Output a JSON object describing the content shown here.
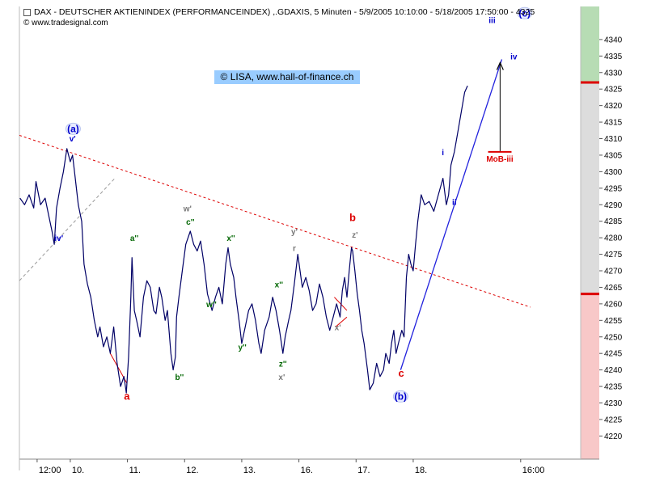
{
  "header": {
    "title": "DAX  - DEUTSCHER AKTIENINDEX (PERFORMANCEINDEX) ,.GDAXIS, 5 Minuten - 5/9/2005 10:10:00 - 5/18/2005 17:50:00 - 4325",
    "source": "© www.tradesignal.com"
  },
  "watermark": "© LISA, www.hall-of-finance.ch",
  "colors": {
    "price": "#000066",
    "trendline": "#dd0000",
    "impulse": "#2222dd",
    "blue_label": "#0000cc",
    "red_label": "#dd0000",
    "green_label": "#006600",
    "gray_label": "#777777",
    "zone_green": "#b7dcb4",
    "zone_gray": "#dcdcdc",
    "zone_red": "#f8c8c8"
  },
  "chart_data": {
    "type": "line",
    "title": "DAX  - DEUTSCHER AKTIENINDEX (PERFORMANCEINDEX) ,.GDAXIS, 5 Minuten",
    "ylim": [
      4213,
      4350
    ],
    "y_ticks": [
      4220,
      4225,
      4230,
      4235,
      4240,
      4245,
      4250,
      4255,
      4260,
      4265,
      4270,
      4275,
      4280,
      4285,
      4290,
      4295,
      4300,
      4305,
      4310,
      4315,
      4320,
      4325,
      4330,
      4335,
      4340
    ],
    "x_ticks": [
      {
        "label": "12:00",
        "t": -0.58
      },
      {
        "label": "10.",
        "t": 0
      },
      {
        "label": "11.",
        "t": 1
      },
      {
        "label": "12.",
        "t": 2
      },
      {
        "label": "13.",
        "t": 3
      },
      {
        "label": "16.",
        "t": 4
      },
      {
        "label": "17.",
        "t": 5
      },
      {
        "label": "18.",
        "t": 6
      },
      {
        "label": "16:00",
        "t": 7.88
      }
    ],
    "xlim": [
      -0.89,
      8.93
    ],
    "series": [
      {
        "points": [
          [
            -0.88,
            4292
          ],
          [
            -0.8,
            4290
          ],
          [
            -0.72,
            4293
          ],
          [
            -0.64,
            4289
          ],
          [
            -0.6,
            4297
          ],
          [
            -0.52,
            4290
          ],
          [
            -0.44,
            4292
          ],
          [
            -0.38,
            4287
          ],
          [
            -0.32,
            4282
          ],
          [
            -0.28,
            4278
          ],
          [
            -0.24,
            4289
          ],
          [
            -0.18,
            4295
          ],
          [
            -0.12,
            4300
          ],
          [
            -0.06,
            4307
          ],
          [
            0,
            4303
          ],
          [
            0.04,
            4305
          ],
          [
            0.08,
            4299
          ],
          [
            0.14,
            4290
          ],
          [
            0.2,
            4285
          ],
          [
            0.24,
            4272
          ],
          [
            0.3,
            4266
          ],
          [
            0.36,
            4262
          ],
          [
            0.42,
            4255
          ],
          [
            0.48,
            4250
          ],
          [
            0.52,
            4253
          ],
          [
            0.58,
            4247
          ],
          [
            0.64,
            4250
          ],
          [
            0.7,
            4245
          ],
          [
            0.76,
            4253
          ],
          [
            0.82,
            4242
          ],
          [
            0.88,
            4235
          ],
          [
            0.94,
            4238
          ],
          [
            0.98,
            4233
          ],
          [
            1.02,
            4244
          ],
          [
            1.06,
            4262
          ],
          [
            1.08,
            4274
          ],
          [
            1.12,
            4258
          ],
          [
            1.16,
            4255
          ],
          [
            1.22,
            4250
          ],
          [
            1.28,
            4262
          ],
          [
            1.34,
            4267
          ],
          [
            1.4,
            4265
          ],
          [
            1.46,
            4258
          ],
          [
            1.5,
            4257
          ],
          [
            1.56,
            4265
          ],
          [
            1.6,
            4262
          ],
          [
            1.66,
            4255
          ],
          [
            1.7,
            4258
          ],
          [
            1.76,
            4245
          ],
          [
            1.8,
            4240
          ],
          [
            1.84,
            4244
          ],
          [
            1.86,
            4256
          ],
          [
            1.9,
            4262
          ],
          [
            1.96,
            4270
          ],
          [
            2.02,
            4278
          ],
          [
            2.1,
            4282
          ],
          [
            2.16,
            4278
          ],
          [
            2.22,
            4276
          ],
          [
            2.28,
            4279
          ],
          [
            2.34,
            4272
          ],
          [
            2.4,
            4263
          ],
          [
            2.48,
            4258
          ],
          [
            2.54,
            4262
          ],
          [
            2.6,
            4265
          ],
          [
            2.66,
            4260
          ],
          [
            2.72,
            4272
          ],
          [
            2.76,
            4277
          ],
          [
            2.8,
            4272
          ],
          [
            2.86,
            4268
          ],
          [
            2.9,
            4262
          ],
          [
            2.96,
            4254
          ],
          [
            3.0,
            4248
          ],
          [
            3.06,
            4253
          ],
          [
            3.12,
            4258
          ],
          [
            3.18,
            4260
          ],
          [
            3.24,
            4255
          ],
          [
            3.3,
            4248
          ],
          [
            3.34,
            4245
          ],
          [
            3.4,
            4252
          ],
          [
            3.48,
            4256
          ],
          [
            3.54,
            4262
          ],
          [
            3.6,
            4258
          ],
          [
            3.66,
            4252
          ],
          [
            3.72,
            4245
          ],
          [
            3.76,
            4250
          ],
          [
            3.82,
            4255
          ],
          [
            3.86,
            4258
          ],
          [
            3.92,
            4266
          ],
          [
            3.98,
            4275
          ],
          [
            4.02,
            4270
          ],
          [
            4.06,
            4265
          ],
          [
            4.12,
            4268
          ],
          [
            4.18,
            4264
          ],
          [
            4.24,
            4258
          ],
          [
            4.3,
            4260
          ],
          [
            4.36,
            4266
          ],
          [
            4.42,
            4262
          ],
          [
            4.48,
            4256
          ],
          [
            4.54,
            4252
          ],
          [
            4.6,
            4256
          ],
          [
            4.66,
            4260
          ],
          [
            4.72,
            4256
          ],
          [
            4.76,
            4264
          ],
          [
            4.8,
            4268
          ],
          [
            4.84,
            4262
          ],
          [
            4.88,
            4270
          ],
          [
            4.92,
            4277
          ],
          [
            4.94,
            4276
          ],
          [
            4.98,
            4270
          ],
          [
            5.02,
            4263
          ],
          [
            5.06,
            4258
          ],
          [
            5.1,
            4252
          ],
          [
            5.14,
            4248
          ],
          [
            5.2,
            4240
          ],
          [
            5.24,
            4234
          ],
          [
            5.3,
            4236
          ],
          [
            5.36,
            4242
          ],
          [
            5.42,
            4238
          ],
          [
            5.48,
            4240
          ],
          [
            5.52,
            4245
          ],
          [
            5.58,
            4242
          ],
          [
            5.62,
            4248
          ],
          [
            5.66,
            4252
          ],
          [
            5.7,
            4245
          ],
          [
            5.74,
            4248
          ],
          [
            5.8,
            4252
          ],
          [
            5.84,
            4250
          ],
          [
            5.88,
            4268
          ],
          [
            5.92,
            4275
          ],
          [
            5.96,
            4272
          ],
          [
            6.0,
            4270
          ],
          [
            6.04,
            4278
          ],
          [
            6.08,
            4285
          ],
          [
            6.14,
            4293
          ],
          [
            6.2,
            4290
          ],
          [
            6.28,
            4291
          ],
          [
            6.36,
            4288
          ],
          [
            6.44,
            4293
          ],
          [
            6.52,
            4298
          ],
          [
            6.58,
            4290
          ],
          [
            6.62,
            4293
          ],
          [
            6.66,
            4302
          ],
          [
            6.72,
            4306
          ],
          [
            6.78,
            4312
          ],
          [
            6.84,
            4318
          ],
          [
            6.9,
            4324
          ],
          [
            6.95,
            4326
          ]
        ]
      }
    ],
    "trendlines": [
      {
        "style": "dashed-red",
        "from": [
          -0.89,
          4311
        ],
        "to": [
          8.05,
          4259
        ]
      },
      {
        "style": "dashed-gray",
        "from": [
          -0.89,
          4267
        ],
        "to": [
          0.78,
          4298
        ]
      },
      {
        "style": "solid-blue",
        "from": [
          5.78,
          4240
        ],
        "to": [
          7.55,
          4334
        ]
      },
      {
        "style": "thin-red",
        "from": [
          0.7,
          4245
        ],
        "to": [
          0.99,
          4236
        ]
      },
      {
        "style": "thin-red",
        "from": [
          4.62,
          4262
        ],
        "to": [
          4.84,
          4258
        ]
      },
      {
        "style": "thin-red",
        "from": [
          4.64,
          4253
        ],
        "to": [
          4.84,
          4256
        ]
      }
    ],
    "arrow": {
      "x": 7.52,
      "from": 4306,
      "to": 4333
    },
    "mob_bar": {
      "x1": 7.31,
      "x2": 7.72,
      "y": 4306,
      "label": "MoB-iii"
    },
    "price_zones": [
      {
        "from": 4327,
        "to": 4350,
        "color": "zone_green"
      },
      {
        "from": 4263,
        "to": 4327,
        "color": "zone_gray"
      },
      {
        "from": 4213,
        "to": 4263,
        "color": "zone_red"
      }
    ],
    "zone_markers": [
      4327,
      4263
    ],
    "annotations": [
      {
        "text": "(a)",
        "x": 0.05,
        "y": 4312,
        "color": "blue_label",
        "circled": true
      },
      {
        "text": "v'",
        "x": 0.04,
        "y": 4309.2,
        "color": "blue_label"
      },
      {
        "text": "iv'",
        "x": -0.2,
        "y": 4279,
        "color": "blue_label"
      },
      {
        "text": "a",
        "x": 0.99,
        "y": 4231,
        "color": "red_label",
        "size": 13
      },
      {
        "text": "a''",
        "x": 1.12,
        "y": 4279,
        "color": "green_label"
      },
      {
        "text": "b''",
        "x": 1.91,
        "y": 4237,
        "color": "green_label"
      },
      {
        "text": "w'",
        "x": 2.05,
        "y": 4288,
        "color": "gray_label"
      },
      {
        "text": "c''",
        "x": 2.1,
        "y": 4284,
        "color": "green_label"
      },
      {
        "text": "w''",
        "x": 2.47,
        "y": 4259,
        "color": "green_label"
      },
      {
        "text": "x''",
        "x": 2.81,
        "y": 4279,
        "color": "green_label"
      },
      {
        "text": "y''",
        "x": 3.01,
        "y": 4246,
        "color": "green_label"
      },
      {
        "text": "x''",
        "x": 3.65,
        "y": 4265,
        "color": "green_label"
      },
      {
        "text": "z''",
        "x": 3.72,
        "y": 4241,
        "color": "green_label"
      },
      {
        "text": "x'",
        "x": 3.7,
        "y": 4237,
        "color": "gray_label"
      },
      {
        "text": "y'",
        "x": 3.92,
        "y": 4281,
        "color": "gray_label"
      },
      {
        "text": "r",
        "x": 3.92,
        "y": 4276,
        "color": "gray_label"
      },
      {
        "text": "b",
        "x": 4.94,
        "y": 4285,
        "color": "red_label",
        "size": 13
      },
      {
        "text": "z'",
        "x": 4.98,
        "y": 4280,
        "color": "gray_label"
      },
      {
        "text": "x'",
        "x": 4.68,
        "y": 4252,
        "color": "gray_label"
      },
      {
        "text": "c",
        "x": 5.79,
        "y": 4238,
        "color": "red_label",
        "size": 13
      },
      {
        "text": "(b)",
        "x": 5.78,
        "y": 4231,
        "color": "blue_label",
        "circled": true
      },
      {
        "text": "i",
        "x": 6.52,
        "y": 4305,
        "color": "blue_label"
      },
      {
        "text": "ii",
        "x": 6.72,
        "y": 4290,
        "color": "blue_label"
      },
      {
        "text": "iii",
        "x": 7.38,
        "y": 4345,
        "color": "blue_label"
      },
      {
        "text": "(c)",
        "x": 7.95,
        "y": 4347,
        "color": "blue_label",
        "circled": true
      },
      {
        "text": "iv",
        "x": 7.76,
        "y": 4334,
        "color": "blue_label"
      }
    ]
  }
}
